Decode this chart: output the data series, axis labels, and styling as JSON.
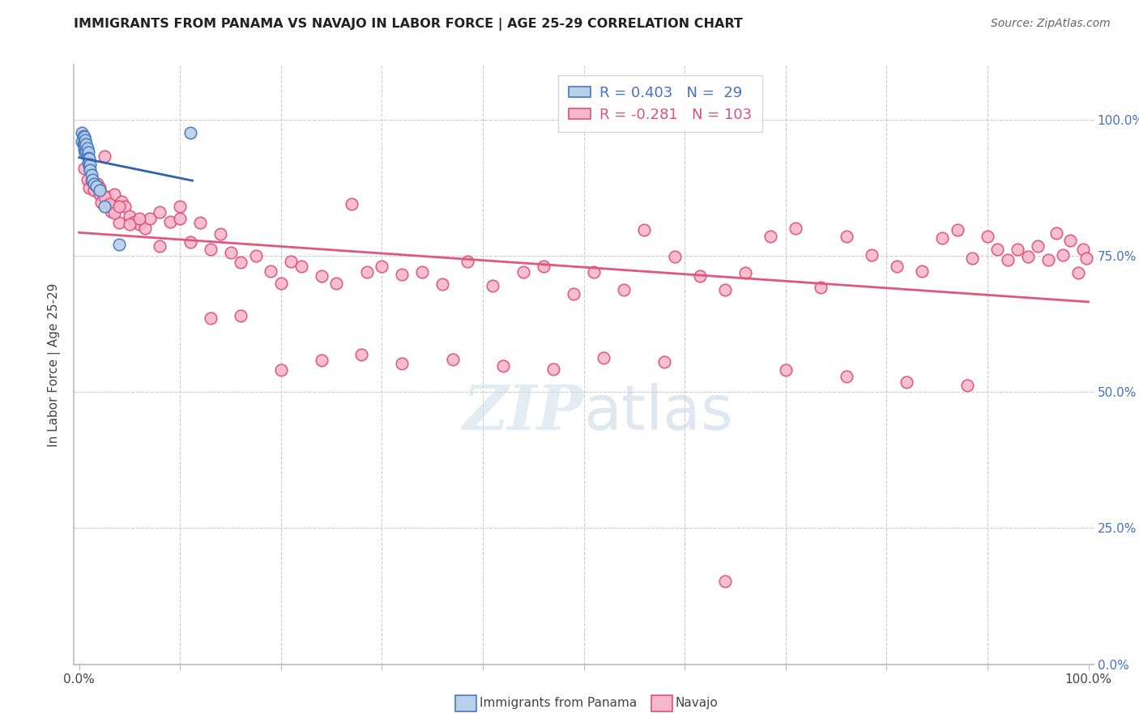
{
  "title": "IMMIGRANTS FROM PANAMA VS NAVAJO IN LABOR FORCE | AGE 25-29 CORRELATION CHART",
  "source": "Source: ZipAtlas.com",
  "ylabel": "In Labor Force | Age 25-29",
  "legend_blue_R": "0.403",
  "legend_blue_N": "29",
  "legend_pink_R": "-0.281",
  "legend_pink_N": "103",
  "blue_face_color": "#b8d0e8",
  "pink_face_color": "#f5b8ca",
  "blue_edge_color": "#4878c0",
  "pink_edge_color": "#e0507a",
  "blue_line_color": "#3060b8",
  "pink_line_color": "#e05878",
  "grid_color": "#cccccc",
  "spine_color": "#bbbbbb",
  "right_tick_color": "#4472c4",
  "blue_scatter_x": [
    0.003,
    0.003,
    0.004,
    0.004,
    0.005,
    0.005,
    0.005,
    0.006,
    0.006,
    0.006,
    0.007,
    0.007,
    0.008,
    0.008,
    0.009,
    0.009,
    0.009,
    0.01,
    0.01,
    0.011,
    0.011,
    0.012,
    0.013,
    0.015,
    0.017,
    0.02,
    0.025,
    0.04,
    0.11
  ],
  "blue_scatter_y": [
    0.975,
    0.96,
    0.97,
    0.955,
    0.968,
    0.958,
    0.945,
    0.962,
    0.95,
    0.938,
    0.955,
    0.942,
    0.948,
    0.935,
    0.94,
    0.93,
    0.92,
    0.928,
    0.915,
    0.918,
    0.908,
    0.898,
    0.89,
    0.882,
    0.878,
    0.87,
    0.84,
    0.77,
    0.975
  ],
  "pink_scatter_x": [
    0.005,
    0.008,
    0.01,
    0.012,
    0.015,
    0.018,
    0.02,
    0.022,
    0.025,
    0.028,
    0.03,
    0.032,
    0.035,
    0.04,
    0.042,
    0.045,
    0.05,
    0.055,
    0.06,
    0.065,
    0.07,
    0.08,
    0.09,
    0.1,
    0.11,
    0.12,
    0.13,
    0.14,
    0.15,
    0.16,
    0.175,
    0.19,
    0.2,
    0.21,
    0.22,
    0.24,
    0.255,
    0.27,
    0.285,
    0.3,
    0.32,
    0.34,
    0.36,
    0.385,
    0.41,
    0.44,
    0.46,
    0.49,
    0.51,
    0.54,
    0.56,
    0.59,
    0.615,
    0.64,
    0.66,
    0.685,
    0.71,
    0.735,
    0.76,
    0.785,
    0.81,
    0.835,
    0.855,
    0.87,
    0.885,
    0.9,
    0.91,
    0.92,
    0.93,
    0.94,
    0.95,
    0.96,
    0.968,
    0.975,
    0.982,
    0.99,
    0.995,
    0.998,
    0.02,
    0.025,
    0.03,
    0.035,
    0.04,
    0.05,
    0.06,
    0.08,
    0.1,
    0.13,
    0.16,
    0.2,
    0.24,
    0.28,
    0.32,
    0.37,
    0.42,
    0.47,
    0.52,
    0.58,
    0.64,
    0.7,
    0.76,
    0.82,
    0.88
  ],
  "pink_scatter_y": [
    0.91,
    0.89,
    0.875,
    0.888,
    0.87,
    0.882,
    0.862,
    0.848,
    0.932,
    0.858,
    0.848,
    0.832,
    0.862,
    0.81,
    0.85,
    0.84,
    0.822,
    0.812,
    0.808,
    0.8,
    0.818,
    0.768,
    0.812,
    0.84,
    0.775,
    0.81,
    0.762,
    0.79,
    0.755,
    0.738,
    0.75,
    0.722,
    0.7,
    0.74,
    0.73,
    0.712,
    0.7,
    0.845,
    0.72,
    0.73,
    0.715,
    0.72,
    0.698,
    0.74,
    0.695,
    0.72,
    0.73,
    0.68,
    0.72,
    0.688,
    0.798,
    0.748,
    0.712,
    0.688,
    0.718,
    0.785,
    0.8,
    0.692,
    0.785,
    0.752,
    0.73,
    0.722,
    0.782,
    0.798,
    0.745,
    0.785,
    0.762,
    0.742,
    0.762,
    0.748,
    0.768,
    0.742,
    0.792,
    0.752,
    0.778,
    0.718,
    0.762,
    0.745,
    0.875,
    0.858,
    0.845,
    0.828,
    0.84,
    0.808,
    0.818,
    0.83,
    0.818,
    0.635,
    0.64,
    0.54,
    0.558,
    0.568,
    0.552,
    0.56,
    0.548,
    0.542,
    0.562,
    0.555,
    0.152,
    0.54,
    0.528,
    0.518,
    0.512
  ]
}
